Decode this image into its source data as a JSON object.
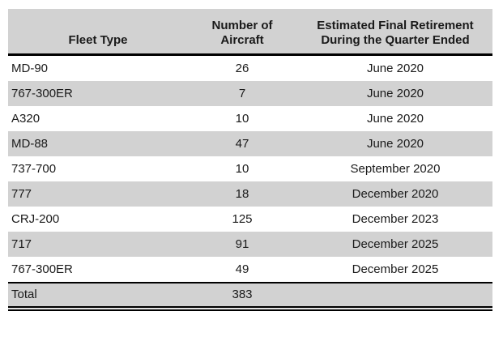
{
  "table": {
    "columns": [
      {
        "label": "Fleet Type"
      },
      {
        "label": "Number of\nAircraft"
      },
      {
        "label": "Estimated Final Retirement\nDuring the Quarter Ended"
      }
    ],
    "rows": [
      {
        "fleet": "MD-90",
        "count": "26",
        "retirement": "June 2020"
      },
      {
        "fleet": "767-300ER",
        "count": "7",
        "retirement": "June 2020"
      },
      {
        "fleet": "A320",
        "count": "10",
        "retirement": "June 2020"
      },
      {
        "fleet": "MD-88",
        "count": "47",
        "retirement": "June 2020"
      },
      {
        "fleet": "737-700",
        "count": "10",
        "retirement": "September 2020"
      },
      {
        "fleet": "777",
        "count": "18",
        "retirement": "December 2020"
      },
      {
        "fleet": "CRJ-200",
        "count": "125",
        "retirement": "December 2023"
      },
      {
        "fleet": "717",
        "count": "91",
        "retirement": "December 2025"
      },
      {
        "fleet": "767-300ER",
        "count": "49",
        "retirement": "December 2025"
      }
    ],
    "total": {
      "label": "Total",
      "count": "383",
      "retirement": ""
    },
    "colors": {
      "header_bg": "#d2d2d2",
      "row_alt_bg": "#d2d2d2",
      "row_bg": "#ffffff",
      "rule": "#000000",
      "text": "#1a1a1a"
    }
  }
}
